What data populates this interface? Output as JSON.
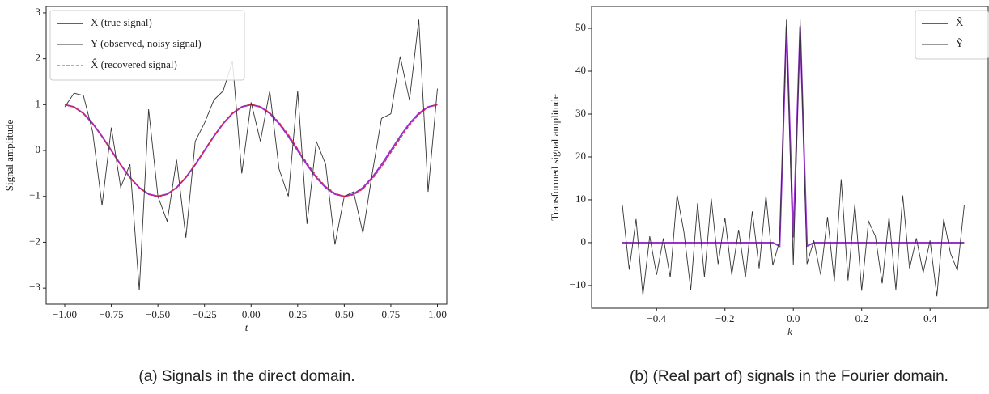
{
  "chart_data": [
    {
      "type": "line",
      "caption": "(a) Signals in the direct domain.",
      "xlabel": "t",
      "ylabel": "Signal amplitude",
      "x": [
        -1,
        -0.95,
        -0.9,
        -0.85,
        -0.8,
        -0.75,
        -0.7,
        -0.65,
        -0.6,
        -0.55,
        -0.5,
        -0.45,
        -0.4,
        -0.35,
        -0.3,
        -0.25,
        -0.2,
        -0.15,
        -0.1,
        -0.05,
        0,
        0.05,
        0.1,
        0.15,
        0.2,
        0.25,
        0.3,
        0.35,
        0.4,
        0.45,
        0.5,
        0.55,
        0.6,
        0.65,
        0.7,
        0.75,
        0.8,
        0.85,
        0.9,
        0.95,
        1
      ],
      "series": [
        {
          "name": "X (true signal)",
          "color": "#9b30d0",
          "width": 2,
          "values": [
            1,
            0.951,
            0.809,
            0.588,
            0.309,
            0,
            -0.309,
            -0.588,
            -0.809,
            -0.951,
            -1,
            -0.951,
            -0.809,
            -0.588,
            -0.309,
            0,
            0.309,
            0.588,
            0.809,
            0.951,
            1,
            0.951,
            0.809,
            0.588,
            0.309,
            0,
            -0.309,
            -0.588,
            -0.809,
            -0.951,
            -1,
            -0.951,
            -0.809,
            -0.588,
            -0.309,
            0,
            0.309,
            0.588,
            0.809,
            0.951,
            1
          ]
        },
        {
          "name": "Y (observed, noisy signal)",
          "color": "#333333",
          "width": 0.9,
          "values": [
            0.95,
            1.25,
            1.2,
            0.4,
            -1.2,
            0.5,
            -0.8,
            -0.3,
            -3.05,
            0.9,
            -1.0,
            -1.55,
            -0.2,
            -1.9,
            0.2,
            0.6,
            1.1,
            1.3,
            1.95,
            -0.5,
            1.05,
            0.2,
            1.3,
            -0.4,
            -1.0,
            1.3,
            -1.6,
            0.2,
            -0.3,
            -2.05,
            -1.0,
            -0.9,
            -1.8,
            -0.5,
            0.7,
            0.8,
            2.05,
            1.1,
            2.85,
            -0.9,
            1.35
          ]
        },
        {
          "name": "X̂ (recovered signal)",
          "color": "#e8202a",
          "width": 1,
          "linestyle": "dashed",
          "values": [
            1.0,
            0.95,
            0.8,
            0.58,
            0.3,
            -0.01,
            -0.32,
            -0.6,
            -0.82,
            -0.96,
            -1.01,
            -0.96,
            -0.81,
            -0.58,
            -0.3,
            0.01,
            0.32,
            0.6,
            0.82,
            0.96,
            1.01,
            0.96,
            0.83,
            0.62,
            0.35,
            0.04,
            -0.27,
            -0.55,
            -0.78,
            -0.93,
            -1.0,
            -0.97,
            -0.84,
            -0.63,
            -0.36,
            -0.05,
            0.26,
            0.55,
            0.78,
            0.94,
            1.0
          ]
        }
      ],
      "xlim": [
        -1.1,
        1.05
      ],
      "ylim": [
        -3.35,
        3.14
      ],
      "xticks": [
        {
          "value": -1,
          "label": "−1.00"
        },
        {
          "value": -0.75,
          "label": "−0.75"
        },
        {
          "value": -0.5,
          "label": "−0.50"
        },
        {
          "value": -0.25,
          "label": "−0.25"
        },
        {
          "value": 0,
          "label": "0.00"
        },
        {
          "value": 0.25,
          "label": "0.25"
        },
        {
          "value": 0.5,
          "label": "0.50"
        },
        {
          "value": 0.75,
          "label": "0.75"
        },
        {
          "value": 1,
          "label": "1.00"
        }
      ],
      "yticks": [
        {
          "value": -3,
          "label": "−3"
        },
        {
          "value": -2,
          "label": "−2"
        },
        {
          "value": -1,
          "label": "−1"
        },
        0,
        1,
        2,
        3
      ],
      "legend": "upper left"
    },
    {
      "type": "line",
      "caption": "(b) (Real part of) signals in the Fourier domain.",
      "xlabel": "k",
      "ylabel": "Transformed signal amplitude",
      "x": [
        -0.5,
        -0.48,
        -0.46,
        -0.44,
        -0.42,
        -0.4,
        -0.38,
        -0.36,
        -0.34,
        -0.32,
        -0.3,
        -0.28,
        -0.26,
        -0.24,
        -0.22,
        -0.2,
        -0.18,
        -0.16,
        -0.14,
        -0.12,
        -0.1,
        -0.08,
        -0.06,
        -0.04,
        -0.02,
        0,
        0.02,
        0.04,
        0.06,
        0.08,
        0.1,
        0.12,
        0.14,
        0.16,
        0.18,
        0.2,
        0.22,
        0.24,
        0.26,
        0.28,
        0.3,
        0.32,
        0.34,
        0.36,
        0.38,
        0.4,
        0.42,
        0.44,
        0.46,
        0.48,
        0.5
      ],
      "series": [
        {
          "name": "X̃",
          "color": "#9b30d0",
          "width": 2,
          "values": [
            0,
            0,
            0,
            0,
            0,
            0,
            0,
            0,
            0,
            0,
            0,
            0,
            0,
            0,
            0,
            0,
            0,
            0,
            0,
            0,
            0,
            0,
            0,
            -0.8,
            50.5,
            1.2,
            50.5,
            -0.8,
            0,
            0,
            0,
            0,
            0,
            0,
            0,
            0,
            0,
            0,
            0,
            0,
            0,
            0,
            0,
            0,
            0,
            0,
            0,
            0,
            0,
            0,
            0
          ]
        },
        {
          "name": "Ỹ",
          "color": "#333333",
          "width": 0.9,
          "values": [
            8.7,
            -6.3,
            5.5,
            -12.3,
            1.5,
            -7.5,
            1.0,
            -8.1,
            11.2,
            2.5,
            -11.0,
            9.2,
            -8.0,
            10.3,
            -5.0,
            5.8,
            -7.5,
            3.0,
            -8.1,
            7.3,
            -6.0,
            11.0,
            -5.3,
            0.5,
            52.0,
            -5.3,
            52.0,
            -5.0,
            0.5,
            -7.5,
            6.0,
            -9.0,
            14.8,
            -8.8,
            9.0,
            -11.2,
            5.0,
            1.5,
            -9.5,
            6.0,
            -11.0,
            11.0,
            -6.0,
            1.0,
            -7.0,
            0.5,
            -12.5,
            5.5,
            -2.5,
            -6.5,
            8.7
          ]
        }
      ],
      "xlim": [
        -0.59,
        0.57
      ],
      "ylim": [
        -15.3,
        55.1
      ],
      "xticks": [
        {
          "value": -0.4,
          "label": "−0.4"
        },
        {
          "value": -0.2,
          "label": "−0.2"
        },
        {
          "value": 0,
          "label": "0.0"
        },
        0.2,
        0.4
      ],
      "yticks": [
        {
          "value": -10,
          "label": "−10"
        },
        0,
        10,
        20,
        30,
        40,
        50
      ],
      "legend": "upper right"
    }
  ]
}
